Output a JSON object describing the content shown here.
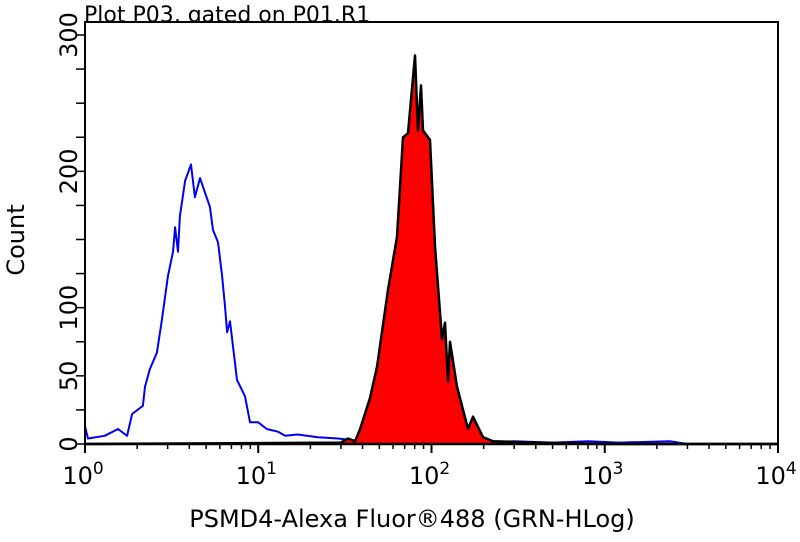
{
  "chart_data": {
    "type": "area",
    "title": "Plot P03, gated on P01.R1",
    "xlabel": "PSMD4-Alexa Fluor®488 (GRN-HLog)",
    "ylabel": "Count",
    "xscale": "log",
    "xlim": [
      1,
      10000
    ],
    "ylim": [
      0,
      300
    ],
    "x_tick_labels": [
      {
        "base": "10",
        "exp": "0",
        "value": 1
      },
      {
        "base": "10",
        "exp": "1",
        "value": 10
      },
      {
        "base": "10",
        "exp": "2",
        "value": 100
      },
      {
        "base": "10",
        "exp": "3",
        "value": 1000
      },
      {
        "base": "10",
        "exp": "4",
        "value": 10000
      }
    ],
    "y_tick_labels": [
      "0",
      "50",
      "100",
      "200",
      "300"
    ],
    "y_tick_values": [
      0,
      50,
      100,
      200,
      300
    ],
    "grid": false,
    "series": [
      {
        "color": "#0000ee",
        "style": "line",
        "points": [
          [
            1.0,
            13
          ],
          [
            1.04,
            4
          ],
          [
            1.3,
            6
          ],
          [
            1.55,
            11
          ],
          [
            1.75,
            6
          ],
          [
            1.87,
            22
          ],
          [
            2.16,
            28
          ],
          [
            2.22,
            42
          ],
          [
            2.37,
            55
          ],
          [
            2.6,
            67
          ],
          [
            2.78,
            91
          ],
          [
            3.01,
            123
          ],
          [
            3.22,
            141
          ],
          [
            3.31,
            159
          ],
          [
            3.44,
            141
          ],
          [
            3.53,
            167
          ],
          [
            3.78,
            193
          ],
          [
            4.09,
            205
          ],
          [
            4.31,
            181
          ],
          [
            4.61,
            195
          ],
          [
            5.26,
            174
          ],
          [
            5.48,
            157
          ],
          [
            5.86,
            148
          ],
          [
            6.18,
            124
          ],
          [
            6.43,
            101
          ],
          [
            6.61,
            82
          ],
          [
            6.87,
            90
          ],
          [
            7.54,
            47
          ],
          [
            8.39,
            35
          ],
          [
            8.96,
            16
          ],
          [
            9.97,
            16
          ],
          [
            11.2,
            11
          ],
          [
            13.0,
            9
          ],
          [
            14.3,
            6
          ],
          [
            16.9,
            7
          ],
          [
            22.1,
            5
          ],
          [
            28.8,
            4
          ],
          [
            40,
            2
          ],
          [
            80,
            1
          ],
          [
            150,
            1
          ],
          [
            300,
            2
          ],
          [
            500,
            1
          ],
          [
            800,
            2
          ],
          [
            1200,
            1
          ],
          [
            2400,
            2
          ],
          [
            3000,
            0
          ]
        ]
      },
      {
        "color": "#ff0000",
        "outline": "#000000",
        "style": "filled",
        "points": [
          [
            1,
            0
          ],
          [
            30,
            1
          ],
          [
            33,
            4
          ],
          [
            36.2,
            2
          ],
          [
            38.7,
            11
          ],
          [
            44.2,
            34
          ],
          [
            48.5,
            57
          ],
          [
            56.1,
            113
          ],
          [
            63.2,
            152
          ],
          [
            68.5,
            225
          ],
          [
            73.2,
            228
          ],
          [
            80.3,
            285
          ],
          [
            83.6,
            230
          ],
          [
            87.0,
            263
          ],
          [
            89.3,
            230
          ],
          [
            98.0,
            223
          ],
          [
            104.8,
            145
          ],
          [
            115,
            77
          ],
          [
            119.7,
            89
          ],
          [
            124.5,
            46
          ],
          [
            127.9,
            75
          ],
          [
            140.4,
            42
          ],
          [
            162.5,
            11
          ],
          [
            173.6,
            20
          ],
          [
            198.3,
            5
          ],
          [
            226.5,
            2
          ],
          [
            400,
            1
          ],
          [
            1000,
            0
          ],
          [
            10000,
            0
          ]
        ]
      }
    ]
  }
}
